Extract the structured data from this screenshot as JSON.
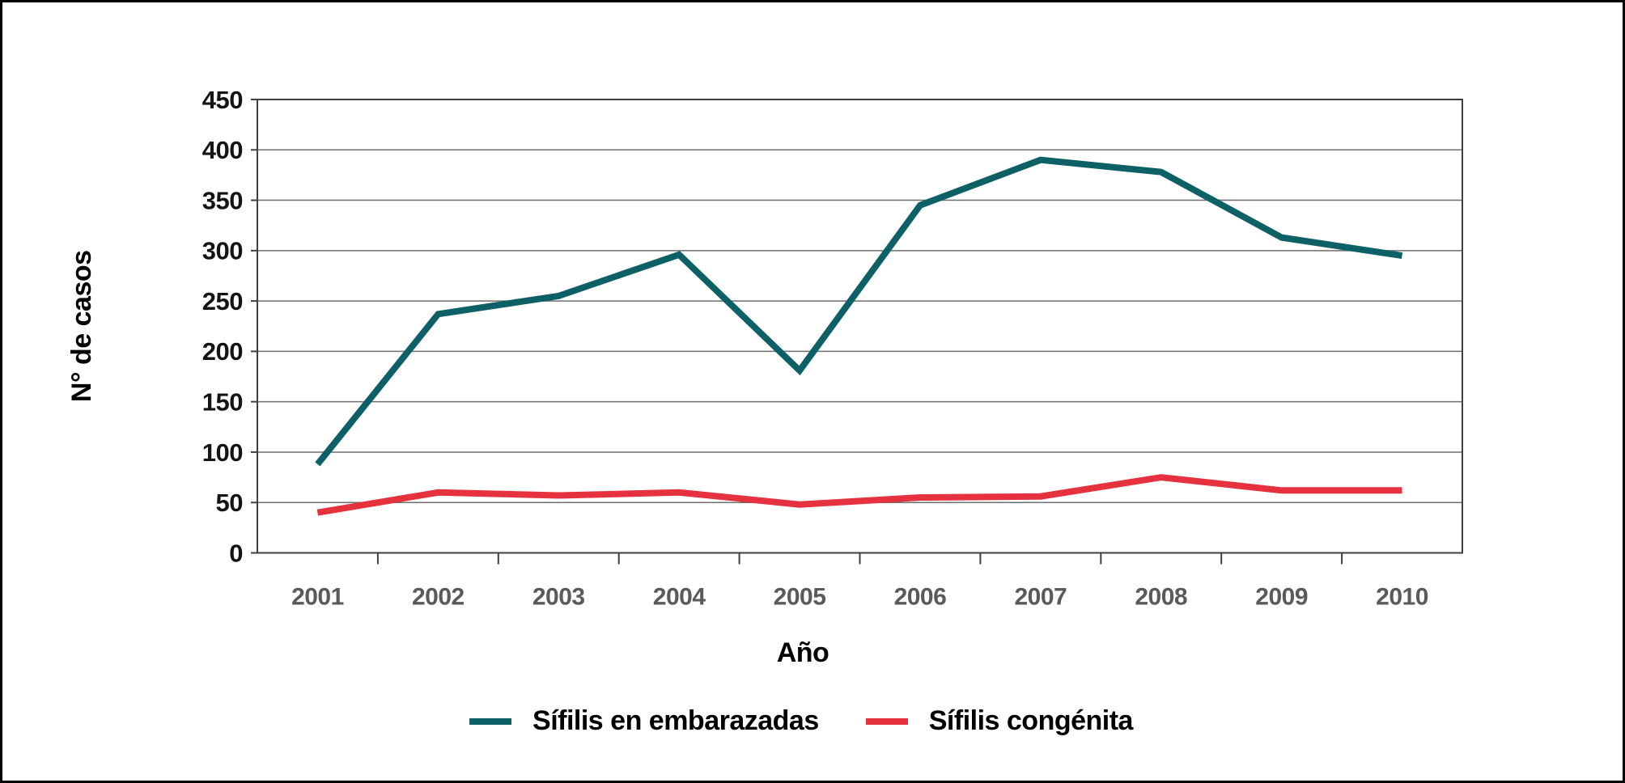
{
  "chart_data": {
    "type": "line",
    "title": "",
    "categories": [
      "2001",
      "2002",
      "2003",
      "2004",
      "2005",
      "2006",
      "2007",
      "2008",
      "2009",
      "2010"
    ],
    "series": [
      {
        "name": "Sífilis en embarazadas",
        "color": "#0D6066",
        "values": [
          88,
          237,
          255,
          296,
          181,
          345,
          390,
          378,
          313,
          295
        ]
      },
      {
        "name": "Sífilis congénita",
        "color": "#E6323E",
        "values": [
          40,
          60,
          57,
          60,
          48,
          55,
          56,
          75,
          62,
          62
        ]
      }
    ],
    "xlabel": "Año",
    "ylabel": "N° de casos",
    "ylim": [
      0,
      450
    ],
    "ytick_step": 50,
    "ytick_labels": [
      "0",
      "50",
      "100",
      "150",
      "200",
      "250",
      "300",
      "350",
      "400",
      "450"
    ],
    "grid": "horizontal",
    "legend_position": "bottom-center",
    "frame_color": "#3f3f3f",
    "gridline_color": "#6e6e6e"
  }
}
